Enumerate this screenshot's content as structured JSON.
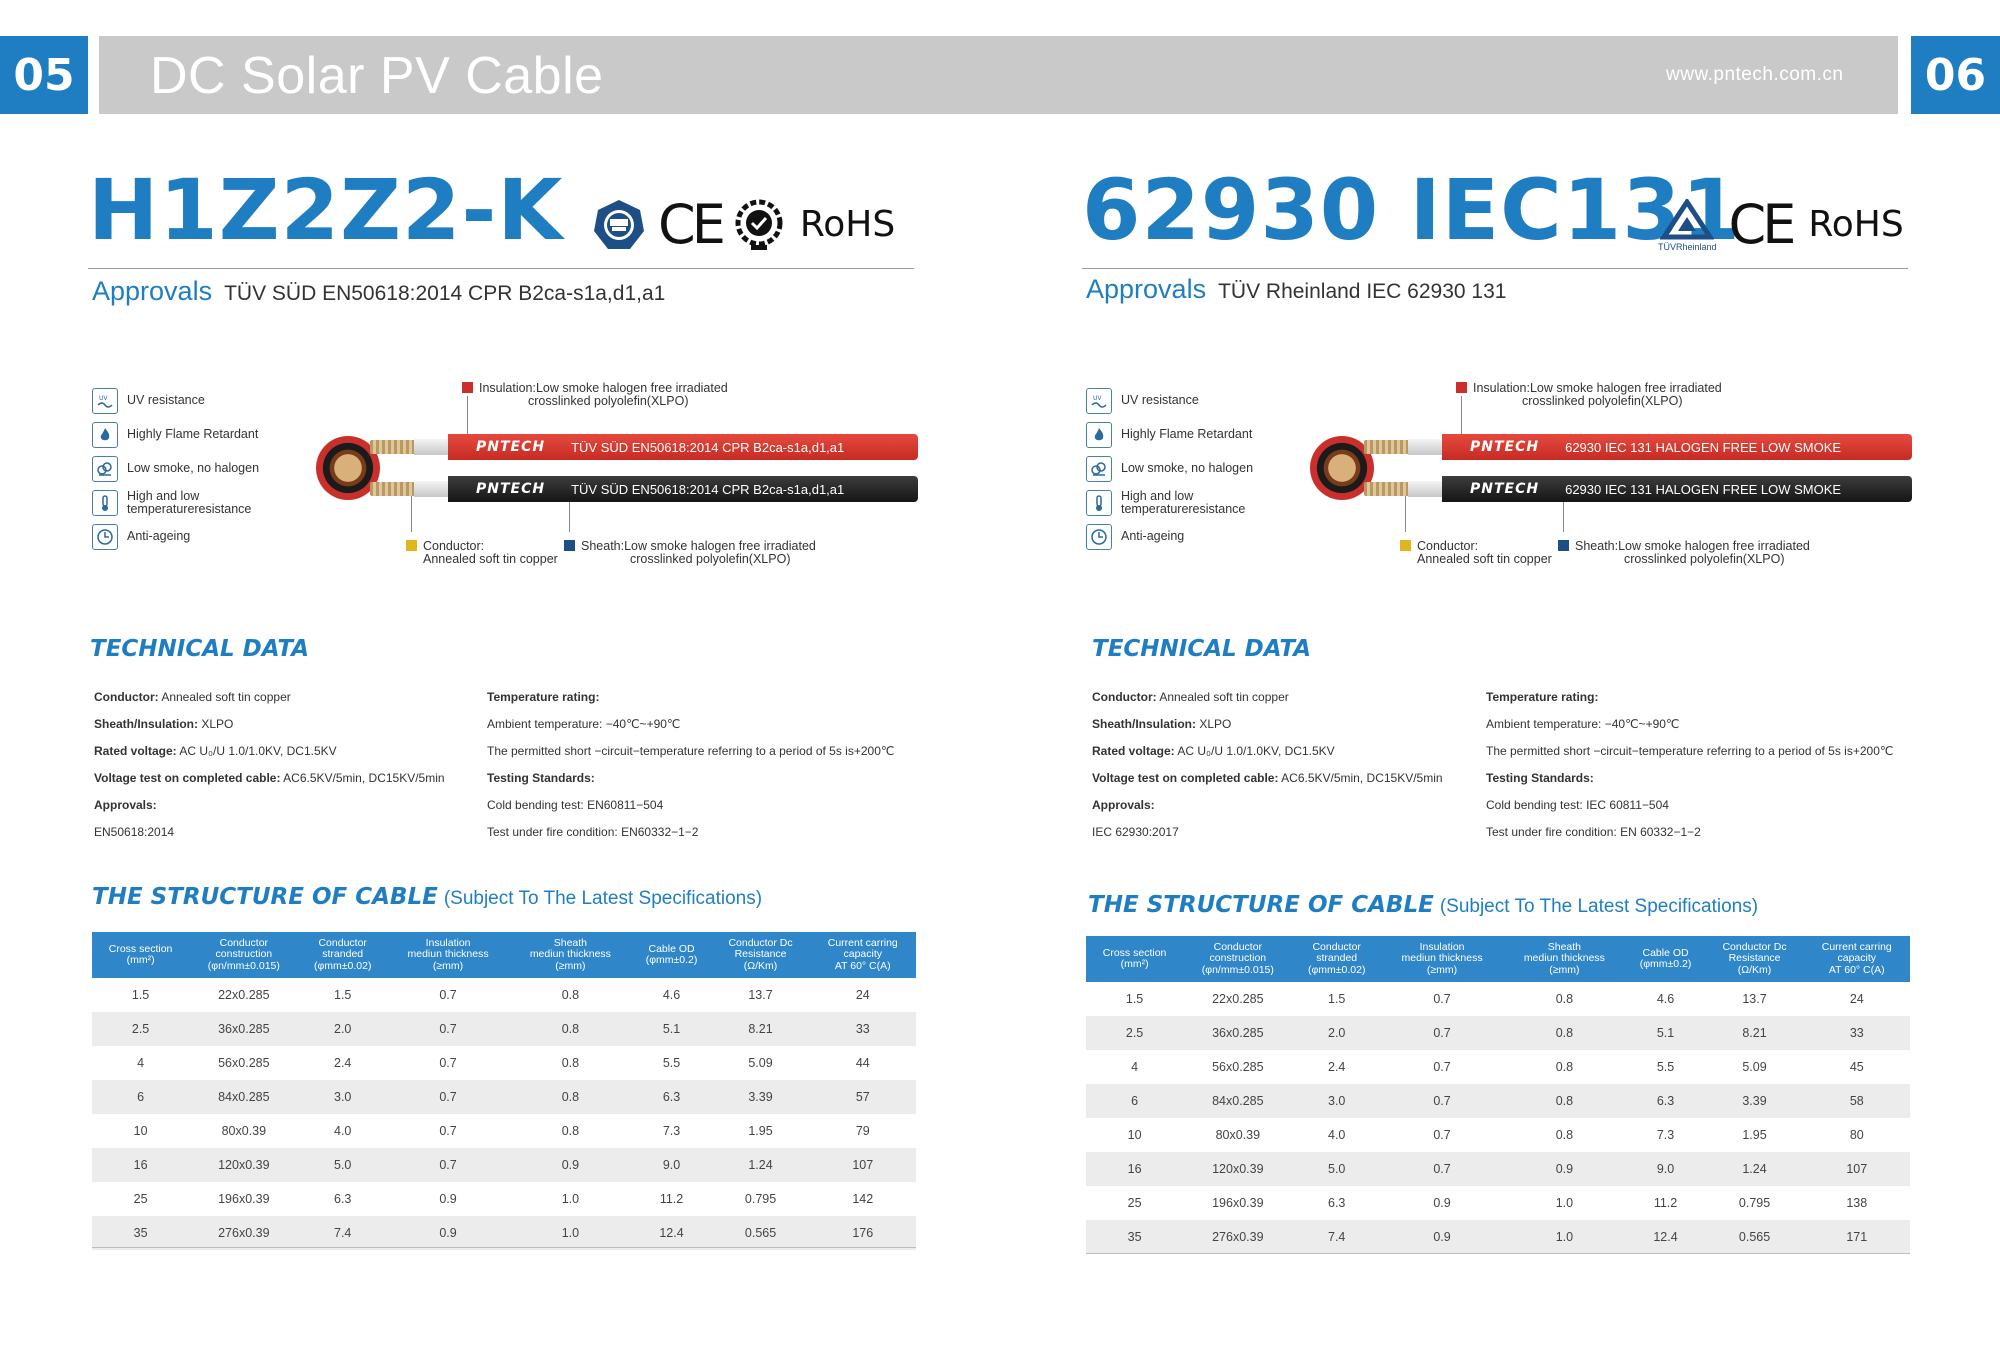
{
  "header": {
    "page_left": "05",
    "page_right": "06",
    "title": "DC Solar PV Cable",
    "website": "www.pntech.com.cn"
  },
  "colors": {
    "accent": "#1f7ec2",
    "header_gray": "#c9c9c9",
    "red_cable": "#d8342c",
    "black_cable": "#1f1f1f"
  },
  "panels": [
    {
      "model": "H1Z2Z2-K",
      "cert_icons": [
        "tuv-sud-icon",
        "ce-mark-icon",
        "cpr-mark-icon"
      ],
      "cert_ce": "CE",
      "cert_rohs": "RoHS",
      "approvals_label": "Approvals",
      "approvals_text": "TÜV SÜD EN50618:2014  CPR B2ca-s1a,d1,a1",
      "features": [
        {
          "icon": "uv-icon",
          "label": "UV resistance"
        },
        {
          "icon": "flame-icon",
          "label": "Highly Flame Retardant"
        },
        {
          "icon": "smoke-icon",
          "label": "Low smoke, no halogen"
        },
        {
          "icon": "thermometer-icon",
          "label": "High and low temperatureresistance"
        },
        {
          "icon": "clock-icon",
          "label": "Anti-ageing"
        }
      ],
      "cable": {
        "brand": "PNTECH",
        "print_red": "TÜV SÜD EN50618:2014  CPR B2ca-s1a,d1,a1",
        "print_black": "TÜV SÜD EN50618:2014  CPR B2ca-s1a,d1,a1",
        "insulation_line1": "Insulation:Low smoke halogen free irradiated",
        "insulation_line2": "crosslinked polyolefin(XLPO)",
        "conductor_line1": "Conductor:",
        "conductor_line2": "Annealed soft tin copper",
        "sheath_line1": "Sheath:Low smoke halogen free irradiated",
        "sheath_line2": "crosslinked polyolefin(XLPO)"
      },
      "tech_title": "TECHNICAL DATA",
      "tech_left": [
        {
          "label": "Conductor:",
          "value": " Annealed soft tin copper"
        },
        {
          "label": "Sheath/Insulation:",
          "value": " XLPO"
        },
        {
          "label": "Rated voltage:",
          "value": " AC U₀/U 1.0/1.0KV, DC1.5KV"
        },
        {
          "label": "Voltage test on completed cable:",
          "value": " AC6.5KV/5min, DC15KV/5min"
        },
        {
          "label": "Approvals:",
          "value": ""
        },
        {
          "label": "",
          "value": "EN50618:2014"
        }
      ],
      "tech_right": [
        {
          "label": "Temperature rating:",
          "value": ""
        },
        {
          "label": "",
          "value": "Ambient temperature: −40℃~+90℃"
        },
        {
          "label": "",
          "value": "The permitted short −circuit−temperature referring to a period of 5s is+200℃"
        },
        {
          "label": "Testing Standards:",
          "value": ""
        },
        {
          "label": "",
          "value": "Cold bending test: EN60811−504"
        },
        {
          "label": "",
          "value": "Test under fire condition: EN60332−1−2"
        }
      ],
      "structure_title": "THE STRUCTURE OF CABLE",
      "structure_sub": "(Subject To The Latest Specifications)",
      "columns": [
        [
          "Cross section",
          "(mm²)"
        ],
        [
          "Conductor",
          "construction",
          "(φn/mm±0.015)"
        ],
        [
          "Conductor",
          "stranded",
          "(φmm±0.02)"
        ],
        [
          "Insulation",
          "mediun thickness",
          "(≥mm)"
        ],
        [
          "Sheath",
          "mediun thickness",
          "(≥mm)"
        ],
        [
          "Cable OD",
          "(φmm±0.2)"
        ],
        [
          "Conductor Dc",
          "Resistance",
          "(Ω/Km)"
        ],
        [
          "Current carring",
          "capacity",
          "AT 60° C(A)"
        ]
      ],
      "rows": [
        [
          "1.5",
          "22x0.285",
          "1.5",
          "0.7",
          "0.8",
          "4.6",
          "13.7",
          "24"
        ],
        [
          "2.5",
          "36x0.285",
          "2.0",
          "0.7",
          "0.8",
          "5.1",
          "8.21",
          "33"
        ],
        [
          "4",
          "56x0.285",
          "2.4",
          "0.7",
          "0.8",
          "5.5",
          "5.09",
          "44"
        ],
        [
          "6",
          "84x0.285",
          "3.0",
          "0.7",
          "0.8",
          "6.3",
          "3.39",
          "57"
        ],
        [
          "10",
          "80x0.39",
          "4.0",
          "0.7",
          "0.8",
          "7.3",
          "1.95",
          "79"
        ],
        [
          "16",
          "120x0.39",
          "5.0",
          "0.7",
          "0.9",
          "9.0",
          "1.24",
          "107"
        ],
        [
          "25",
          "196x0.39",
          "6.3",
          "0.9",
          "1.0",
          "11.2",
          "0.795",
          "142"
        ],
        [
          "35",
          "276x0.39",
          "7.4",
          "0.9",
          "1.0",
          "12.4",
          "0.565",
          "176"
        ]
      ]
    },
    {
      "model": "62930 IEC131",
      "cert_icons": [
        "tuv-rheinland-icon",
        "ce-mark-icon"
      ],
      "cert_tuv_label": "TÜVRheinland",
      "cert_ce": "CE",
      "cert_rohs": "RoHS",
      "approvals_label": "Approvals",
      "approvals_text": "TÜV Rheinland IEC 62930 131",
      "features": [
        {
          "icon": "uv-icon",
          "label": "UV resistance"
        },
        {
          "icon": "flame-icon",
          "label": "Highly Flame Retardant"
        },
        {
          "icon": "smoke-icon",
          "label": "Low smoke, no halogen"
        },
        {
          "icon": "thermometer-icon",
          "label": "High and low temperatureresistance"
        },
        {
          "icon": "clock-icon",
          "label": "Anti-ageing"
        }
      ],
      "cable": {
        "brand": "PNTECH",
        "print_red": "62930 IEC 131  HALOGEN FREE LOW SMOKE",
        "print_black": "62930 IEC 131  HALOGEN FREE LOW SMOKE",
        "insulation_line1": "Insulation:Low smoke halogen free irradiated",
        "insulation_line2": "crosslinked polyolefin(XLPO)",
        "conductor_line1": "Conductor:",
        "conductor_line2": "Annealed soft tin copper",
        "sheath_line1": "Sheath:Low smoke halogen free irradiated",
        "sheath_line2": "crosslinked polyolefin(XLPO)"
      },
      "tech_title": "TECHNICAL DATA",
      "tech_left": [
        {
          "label": "Conductor:",
          "value": " Annealed soft tin copper"
        },
        {
          "label": "Sheath/Insulation:",
          "value": " XLPO"
        },
        {
          "label": "Rated voltage:",
          "value": " AC U₀/U 1.0/1.0KV, DC1.5KV"
        },
        {
          "label": "Voltage test on completed cable:",
          "value": " AC6.5KV/5min, DC15KV/5min"
        },
        {
          "label": "Approvals:",
          "value": ""
        },
        {
          "label": "",
          "value": "IEC 62930:2017"
        }
      ],
      "tech_right": [
        {
          "label": "Temperature rating:",
          "value": ""
        },
        {
          "label": "",
          "value": "Ambient temperature: −40℃~+90℃"
        },
        {
          "label": "",
          "value": "The permitted short −circuit−temperature referring to a period of 5s is+200℃"
        },
        {
          "label": "Testing Standards:",
          "value": ""
        },
        {
          "label": "",
          "value": "Cold bending test: IEC 60811−504"
        },
        {
          "label": "",
          "value": "Test under fire condition: EN 60332−1−2"
        }
      ],
      "structure_title": "THE STRUCTURE OF CABLE",
      "structure_sub": "(Subject To The Latest Specifications)",
      "columns": [
        [
          "Cross section",
          "(mm²)"
        ],
        [
          "Conductor",
          "construction",
          "(φn/mm±0.015)"
        ],
        [
          "Conductor",
          "stranded",
          "(φmm±0.02)"
        ],
        [
          "Insulation",
          "mediun thickness",
          "(≥mm)"
        ],
        [
          "Sheath",
          "mediun thickness",
          "(≥mm)"
        ],
        [
          "Cable OD",
          "(φmm±0.2)"
        ],
        [
          "Conductor Dc",
          "Resistance",
          "(Ω/Km)"
        ],
        [
          "Current carring",
          "capacity",
          "AT 60° C(A)"
        ]
      ],
      "rows": [
        [
          "1.5",
          "22x0.285",
          "1.5",
          "0.7",
          "0.8",
          "4.6",
          "13.7",
          "24"
        ],
        [
          "2.5",
          "36x0.285",
          "2.0",
          "0.7",
          "0.8",
          "5.1",
          "8.21",
          "33"
        ],
        [
          "4",
          "56x0.285",
          "2.4",
          "0.7",
          "0.8",
          "5.5",
          "5.09",
          "45"
        ],
        [
          "6",
          "84x0.285",
          "3.0",
          "0.7",
          "0.8",
          "6.3",
          "3.39",
          "58"
        ],
        [
          "10",
          "80x0.39",
          "4.0",
          "0.7",
          "0.8",
          "7.3",
          "1.95",
          "80"
        ],
        [
          "16",
          "120x0.39",
          "5.0",
          "0.7",
          "0.9",
          "9.0",
          "1.24",
          "107"
        ],
        [
          "25",
          "196x0.39",
          "6.3",
          "0.9",
          "1.0",
          "11.2",
          "0.795",
          "138"
        ],
        [
          "35",
          "276x0.39",
          "7.4",
          "0.9",
          "1.0",
          "12.4",
          "0.565",
          "171"
        ]
      ]
    }
  ]
}
